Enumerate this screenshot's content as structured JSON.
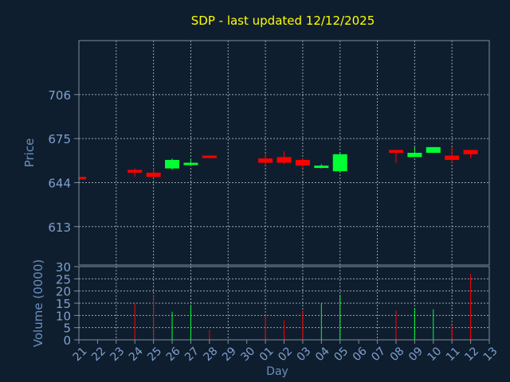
{
  "chart_data": {
    "type": "candlestick",
    "title": "SDP - last updated 12/12/2025",
    "ylabel_price": "Price",
    "ylabel_volume": "Volume (0000)",
    "xlabel": "Day",
    "price_ylim": [
      586,
      744
    ],
    "price_ticks": [
      "706",
      "675",
      "644",
      "613"
    ],
    "volume_ylim": [
      0,
      30
    ],
    "volume_ticks": [
      "30",
      "25",
      "20",
      "15",
      "10",
      "5",
      "0"
    ],
    "x_tick_labels": [
      "21",
      "22",
      "23",
      "24",
      "25",
      "26",
      "27",
      "28",
      "29",
      "30",
      "01",
      "02",
      "03",
      "04",
      "05",
      "06",
      "07",
      "08",
      "09",
      "10",
      "11",
      "12",
      "13"
    ],
    "grid": true,
    "colors": {
      "background": "#0f1e2e",
      "title": "#ffff00",
      "axis_text": "#6a8fbf",
      "tick_text": "#7f9fcf",
      "frame": "#7f8fa0",
      "grid": "#c8d0d8",
      "up": "#00ff33",
      "down": "#ff0000"
    },
    "candles": [
      {
        "day": "21",
        "open": 648,
        "close": 647,
        "high": 648,
        "low": 646,
        "volume": 0
      },
      {
        "day": "24",
        "open": 653,
        "close": 651,
        "high": 654,
        "low": 648,
        "volume": 15
      },
      {
        "day": "25",
        "open": 651,
        "close": 648,
        "high": 654,
        "low": 647,
        "volume": 18.5
      },
      {
        "day": "26",
        "open": 654,
        "close": 660,
        "high": 661,
        "low": 653,
        "volume": 11.5
      },
      {
        "day": "27",
        "open": 657,
        "close": 658,
        "high": 661,
        "low": 656,
        "volume": 14
      },
      {
        "day": "28",
        "open": 663,
        "close": 662,
        "high": 663,
        "low": 661,
        "volume": 4
      },
      {
        "day": "01",
        "open": 661,
        "close": 658,
        "high": 664,
        "low": 656,
        "volume": 10
      },
      {
        "day": "02",
        "open": 662,
        "close": 658,
        "high": 666,
        "low": 657,
        "volume": 8
      },
      {
        "day": "03",
        "open": 660,
        "close": 656,
        "high": 661,
        "low": 654,
        "volume": 12
      },
      {
        "day": "04",
        "open": 655,
        "close": 656,
        "high": 657,
        "low": 654,
        "volume": 15
      },
      {
        "day": "05",
        "open": 652,
        "close": 664,
        "high": 665,
        "low": 651,
        "volume": 18.5
      },
      {
        "day": "08",
        "open": 667,
        "close": 665,
        "high": 667,
        "low": 658,
        "volume": 12
      },
      {
        "day": "09",
        "open": 662,
        "close": 665,
        "high": 669,
        "low": 662,
        "volume": 13
      },
      {
        "day": "10",
        "open": 665,
        "close": 669,
        "high": 669,
        "low": 665,
        "volume": 12.5
      },
      {
        "day": "11",
        "open": 663,
        "close": 660,
        "high": 669,
        "low": 658,
        "volume": 6
      },
      {
        "day": "12",
        "open": 667,
        "close": 664,
        "high": 667,
        "low": 661,
        "volume": 27
      }
    ]
  }
}
